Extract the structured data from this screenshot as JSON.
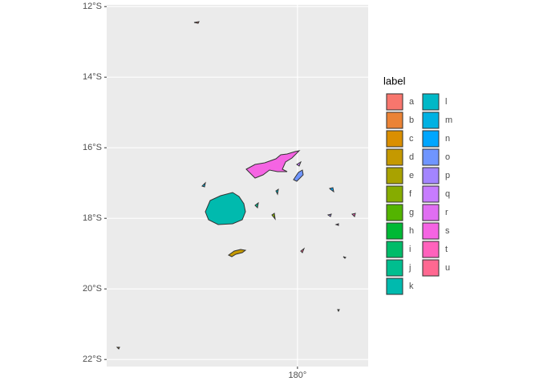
{
  "map": {
    "y_axis": {
      "lim": [
        -22.2,
        -11.95
      ],
      "ticks": [
        {
          "value": -12,
          "label": "12°S"
        },
        {
          "value": -14,
          "label": "14°S"
        },
        {
          "value": -16,
          "label": "16°S"
        },
        {
          "value": -18,
          "label": "18°S"
        },
        {
          "value": -20,
          "label": "20°S"
        },
        {
          "value": -22,
          "label": "22°S"
        }
      ]
    },
    "x_axis": {
      "lim": [
        174.33,
        182.1
      ],
      "ticks": [
        {
          "value": 180,
          "label": "180°"
        }
      ]
    },
    "legend": {
      "title": "label",
      "items": [
        {
          "name": "a",
          "color": "#F8766D"
        },
        {
          "name": "b",
          "color": "#EB8335"
        },
        {
          "name": "c",
          "color": "#DA8F00"
        },
        {
          "name": "d",
          "color": "#C59900"
        },
        {
          "name": "e",
          "color": "#A9A200"
        },
        {
          "name": "f",
          "color": "#86AC00"
        },
        {
          "name": "g",
          "color": "#53B400"
        },
        {
          "name": "h",
          "color": "#00B935"
        },
        {
          "name": "i",
          "color": "#00BC69"
        },
        {
          "name": "j",
          "color": "#00BE8F"
        },
        {
          "name": "k",
          "color": "#00BAAE"
        },
        {
          "name": "l",
          "color": "#00B8C7"
        },
        {
          "name": "m",
          "color": "#00B1E2"
        },
        {
          "name": "n",
          "color": "#00A6FF"
        },
        {
          "name": "o",
          "color": "#6F95FF"
        },
        {
          "name": "p",
          "color": "#A385FF"
        },
        {
          "name": "q",
          "color": "#C77CFF"
        },
        {
          "name": "r",
          "color": "#E06EF2"
        },
        {
          "name": "s",
          "color": "#F564E3"
        },
        {
          "name": "t",
          "color": "#FF62BC"
        },
        {
          "name": "u",
          "color": "#FF6891"
        }
      ]
    }
  }
}
